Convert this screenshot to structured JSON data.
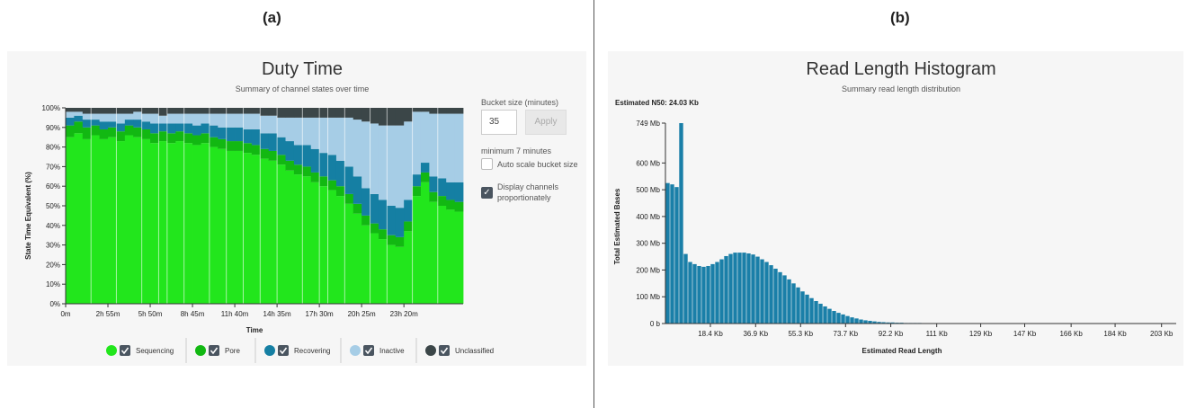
{
  "panels": {
    "a_label": "(a)",
    "b_label": "(b)"
  },
  "duty": {
    "title": "Duty Time",
    "subtitle": "Summary of channel states over time",
    "ylabel": "State Time Equivalent (%)",
    "xlabel": "Time",
    "controls": {
      "bucket_label": "Bucket size (minutes)",
      "bucket_value": "35",
      "apply_label": "Apply",
      "min_note": "minimum 7 minutes",
      "autoscale_label": "Auto scale bucket size",
      "proportional_label_1": "Display channels",
      "proportional_label_2": "proportionately"
    },
    "legend": [
      {
        "name": "Sequencing",
        "color": "#22e61c"
      },
      {
        "name": "Pore",
        "color": "#12b812"
      },
      {
        "name": "Recovering",
        "color": "#157fa3"
      },
      {
        "name": "Inactive",
        "color": "#a6cde6"
      },
      {
        "name": "Unclassified",
        "color": "#3b4648"
      }
    ]
  },
  "histogram": {
    "title": "Read Length Histogram",
    "subtitle": "Summary read length distribution",
    "n50": "Estimated N50: 24.03 Kb",
    "ylabel": "Total Estimated Bases",
    "xlabel": "Estimated Read Length",
    "color": "#1a7fa8"
  },
  "chart_data": [
    {
      "type": "area",
      "title": "Duty Time",
      "xlabel": "Time",
      "ylabel": "State Time Equivalent (%)",
      "ylim": [
        0,
        100
      ],
      "y_ticks": [
        "0%",
        "10%",
        "20%",
        "30%",
        "40%",
        "50%",
        "60%",
        "70%",
        "80%",
        "90%",
        "100%"
      ],
      "x_ticks": [
        "0m",
        "2h 55m",
        "5h 50m",
        "8h 45m",
        "11h 40m",
        "14h 35m",
        "17h 30m",
        "20h 25m",
        "23h 20m"
      ],
      "x_tick_index": [
        0,
        5,
        10,
        15,
        20,
        25,
        30,
        35,
        40
      ],
      "stack_order": [
        "Sequencing",
        "Pore",
        "Recovering",
        "Inactive",
        "Unclassified"
      ],
      "series": [
        {
          "name": "Sequencing",
          "values": [
            85,
            87,
            84,
            86,
            84,
            85,
            83,
            86,
            85,
            84,
            82,
            83,
            82,
            83,
            82,
            81,
            82,
            80,
            79,
            78,
            78,
            77,
            76,
            74,
            73,
            71,
            68,
            66,
            65,
            62,
            60,
            58,
            55,
            51,
            46,
            40,
            36,
            33,
            30,
            29,
            37,
            55,
            62,
            52,
            50,
            48,
            47
          ]
        },
        {
          "name": "Pore",
          "values": [
            6,
            6,
            6,
            5,
            5,
            5,
            5,
            5,
            5,
            5,
            5,
            5,
            5,
            5,
            5,
            5,
            5,
            5,
            5,
            5,
            5,
            5,
            5,
            5,
            5,
            5,
            5,
            5,
            5,
            5,
            5,
            5,
            5,
            5,
            5,
            5,
            5,
            5,
            5,
            5,
            5,
            5,
            5,
            5,
            5,
            5,
            5
          ]
        },
        {
          "name": "Recovering",
          "values": [
            4,
            3,
            4,
            3,
            4,
            3,
            4,
            3,
            4,
            4,
            5,
            4,
            5,
            4,
            5,
            5,
            5,
            6,
            6,
            7,
            7,
            7,
            8,
            8,
            9,
            9,
            10,
            10,
            11,
            12,
            12,
            13,
            13,
            14,
            14,
            14,
            15,
            15,
            15,
            15,
            11,
            6,
            5,
            8,
            9,
            9,
            10
          ]
        },
        {
          "name": "Inactive",
          "values": [
            3,
            2,
            3,
            3,
            4,
            4,
            5,
            3,
            4,
            4,
            5,
            4,
            5,
            5,
            5,
            6,
            5,
            6,
            7,
            7,
            7,
            8,
            8,
            9,
            9,
            10,
            12,
            14,
            14,
            16,
            18,
            19,
            22,
            25,
            29,
            34,
            36,
            38,
            41,
            42,
            40,
            32,
            26,
            32,
            33,
            35,
            35
          ]
        },
        {
          "name": "Unclassified",
          "values": [
            2,
            2,
            3,
            3,
            3,
            3,
            3,
            3,
            2,
            3,
            3,
            4,
            3,
            3,
            3,
            3,
            3,
            3,
            3,
            3,
            3,
            3,
            3,
            4,
            4,
            5,
            5,
            5,
            5,
            5,
            5,
            5,
            5,
            5,
            6,
            7,
            8,
            9,
            9,
            9,
            7,
            2,
            2,
            3,
            3,
            3,
            3
          ]
        }
      ],
      "legend_position": "bottom"
    },
    {
      "type": "bar",
      "title": "Read Length Histogram",
      "subtitle": "Summary read length distribution",
      "xlabel": "Estimated Read Length",
      "ylabel": "Total Estimated Bases",
      "y_unit": "Mb",
      "ylim": [
        0,
        749
      ],
      "y_ticks": [
        "0 b",
        "100 Mb",
        "200 Mb",
        "300 Mb",
        "400 Mb",
        "500 Mb",
        "600 Mb",
        "749 Mb"
      ],
      "y_tick_values": [
        0,
        100,
        200,
        300,
        400,
        500,
        600,
        749
      ],
      "x_ticks": [
        "18.4 Kb",
        "36.9 Kb",
        "55.3 Kb",
        "73.7 Kb",
        "92.2 Kb",
        "111 Kb",
        "129 Kb",
        "147 Kb",
        "166 Kb",
        "184 Kb",
        "203 Kb"
      ],
      "x_tick_values": [
        18.4,
        36.9,
        55.3,
        73.7,
        92.2,
        111,
        129,
        147,
        166,
        184,
        203
      ],
      "xlim": [
        0,
        209
      ],
      "bin_width_kb": 1.84,
      "values": [
        525,
        520,
        510,
        749,
        260,
        230,
        222,
        215,
        212,
        215,
        222,
        230,
        240,
        252,
        260,
        265,
        265,
        265,
        262,
        258,
        250,
        240,
        230,
        218,
        205,
        192,
        180,
        165,
        150,
        135,
        120,
        108,
        95,
        84,
        74,
        64,
        55,
        47,
        40,
        34,
        28,
        23,
        19,
        15,
        12,
        10,
        8,
        6,
        5,
        4,
        4,
        3,
        3,
        2,
        2,
        2,
        2,
        1,
        1,
        1,
        1,
        1,
        1,
        1,
        1,
        0,
        0,
        0,
        0,
        0,
        0,
        0,
        0,
        0,
        0,
        0,
        0,
        0,
        0,
        0,
        0,
        0,
        0,
        0,
        0,
        0,
        0,
        0,
        0,
        0,
        0,
        0,
        0,
        0,
        0,
        0,
        0,
        0,
        0,
        0,
        0,
        0,
        0,
        0,
        0,
        0,
        0,
        0,
        0,
        0,
        0,
        0,
        0
      ]
    }
  ]
}
